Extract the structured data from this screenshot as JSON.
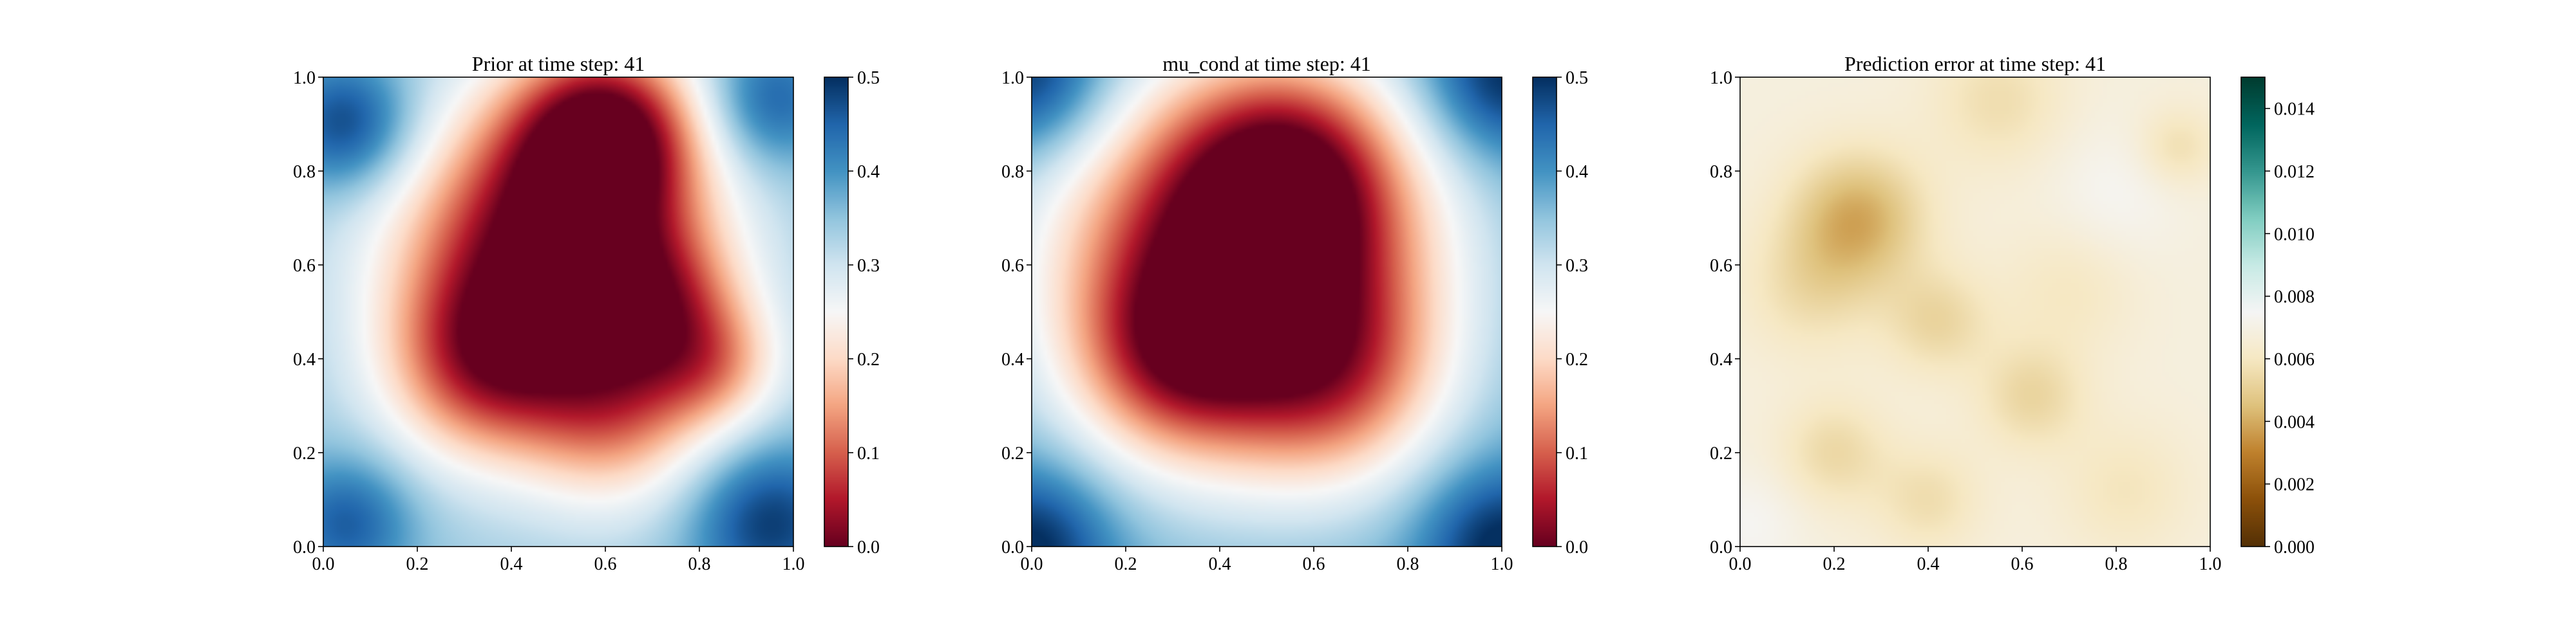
{
  "chart_data": [
    {
      "type": "heatmap",
      "title": "Prior at time step: 41",
      "xlabel": "",
      "ylabel": "",
      "xlim": [
        0.0,
        1.0
      ],
      "ylim": [
        0.0,
        1.0
      ],
      "x_ticks": [
        "0.0",
        "0.2",
        "0.4",
        "0.6",
        "0.8",
        "1.0"
      ],
      "y_ticks": [
        "0.0",
        "0.2",
        "0.4",
        "0.6",
        "0.8",
        "1.0"
      ],
      "colormap": "RdBu",
      "color_range": [
        0.0,
        0.5
      ],
      "colorbar_ticks": [
        "0.0",
        "0.1",
        "0.2",
        "0.3",
        "0.4",
        "0.5"
      ],
      "field": {
        "background": 0.34,
        "blobs": [
          {
            "x": 0.48,
            "y": 0.62,
            "r": 0.22,
            "v": -0.36
          },
          {
            "x": 0.6,
            "y": 0.88,
            "r": 0.14,
            "v": -0.3
          },
          {
            "x": 0.33,
            "y": 0.38,
            "r": 0.14,
            "v": -0.18
          },
          {
            "x": 0.62,
            "y": 0.28,
            "r": 0.14,
            "v": -0.16
          },
          {
            "x": 0.84,
            "y": 0.38,
            "r": 0.1,
            "v": -0.12
          },
          {
            "x": 0.72,
            "y": 0.52,
            "r": 0.12,
            "v": -0.14
          },
          {
            "x": 0.05,
            "y": 0.9,
            "r": 0.1,
            "v": 0.15
          },
          {
            "x": 0.95,
            "y": 0.05,
            "r": 0.12,
            "v": 0.15
          },
          {
            "x": 0.05,
            "y": 0.05,
            "r": 0.1,
            "v": 0.12
          },
          {
            "x": 0.95,
            "y": 0.95,
            "r": 0.1,
            "v": 0.12
          }
        ]
      }
    },
    {
      "type": "heatmap",
      "title": "mu_cond at time step: 41",
      "xlabel": "",
      "ylabel": "",
      "xlim": [
        0.0,
        1.0
      ],
      "ylim": [
        0.0,
        1.0
      ],
      "x_ticks": [
        "0.0",
        "0.2",
        "0.4",
        "0.6",
        "0.8",
        "1.0"
      ],
      "y_ticks": [
        "0.0",
        "0.2",
        "0.4",
        "0.6",
        "0.8",
        "1.0"
      ],
      "colormap": "RdBu",
      "color_range": [
        0.0,
        0.5
      ],
      "colorbar_ticks": [
        "0.0",
        "0.1",
        "0.2",
        "0.3",
        "0.4",
        "0.5"
      ],
      "field": {
        "background": 0.38,
        "blobs": [
          {
            "x": 0.45,
            "y": 0.6,
            "r": 0.28,
            "v": -0.42
          },
          {
            "x": 0.55,
            "y": 0.8,
            "r": 0.16,
            "v": -0.18
          },
          {
            "x": 0.65,
            "y": 0.35,
            "r": 0.16,
            "v": -0.14
          },
          {
            "x": 0.3,
            "y": 0.4,
            "r": 0.14,
            "v": -0.14
          },
          {
            "x": 0.0,
            "y": 1.0,
            "r": 0.12,
            "v": 0.14
          },
          {
            "x": 1.0,
            "y": 1.0,
            "r": 0.12,
            "v": 0.14
          },
          {
            "x": 0.0,
            "y": 0.0,
            "r": 0.12,
            "v": 0.14
          },
          {
            "x": 1.0,
            "y": 0.0,
            "r": 0.12,
            "v": 0.14
          }
        ]
      }
    },
    {
      "type": "heatmap",
      "title": "Prediction error at time step: 41",
      "xlabel": "",
      "ylabel": "",
      "xlim": [
        0.0,
        1.0
      ],
      "ylim": [
        0.0,
        1.0
      ],
      "x_ticks": [
        "0.0",
        "0.2",
        "0.4",
        "0.6",
        "0.8",
        "1.0"
      ],
      "y_ticks": [
        "0.0",
        "0.2",
        "0.4",
        "0.6",
        "0.8",
        "1.0"
      ],
      "colormap": "BrBG",
      "color_range": [
        0.0,
        0.015
      ],
      "colorbar_ticks": [
        "0.000",
        "0.002",
        "0.004",
        "0.006",
        "0.008",
        "0.010",
        "0.012",
        "0.014"
      ],
      "field": {
        "background": 0.0068,
        "blobs": [
          {
            "x": 0.25,
            "y": 0.7,
            "r": 0.1,
            "v": -0.0028
          },
          {
            "x": 0.15,
            "y": 0.55,
            "r": 0.1,
            "v": -0.0012
          },
          {
            "x": 0.42,
            "y": 0.48,
            "r": 0.08,
            "v": -0.0015
          },
          {
            "x": 0.55,
            "y": 0.95,
            "r": 0.1,
            "v": -0.0012
          },
          {
            "x": 0.62,
            "y": 0.32,
            "r": 0.08,
            "v": -0.0015
          },
          {
            "x": 0.2,
            "y": 0.2,
            "r": 0.08,
            "v": -0.0014
          },
          {
            "x": 0.4,
            "y": 0.1,
            "r": 0.08,
            "v": -0.0012
          },
          {
            "x": 0.93,
            "y": 0.85,
            "r": 0.06,
            "v": -0.0012
          },
          {
            "x": 0.82,
            "y": 0.12,
            "r": 0.1,
            "v": -0.0009
          },
          {
            "x": 0.7,
            "y": 0.55,
            "r": 0.1,
            "v": -0.0008
          },
          {
            "x": 0.8,
            "y": 0.75,
            "r": 0.1,
            "v": 0.0006
          },
          {
            "x": 0.02,
            "y": 0.05,
            "r": 0.08,
            "v": 0.0006
          }
        ]
      }
    }
  ]
}
